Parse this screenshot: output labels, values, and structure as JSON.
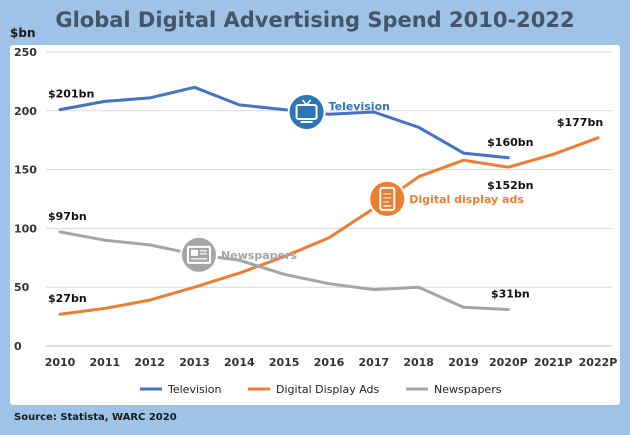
{
  "chart_data": {
    "type": "line",
    "title": "Global Digital Advertising Spend 2010-2022",
    "ylabel": "$bn",
    "xlabel": "",
    "ylim": [
      0,
      250
    ],
    "yticks": [
      0,
      50,
      100,
      150,
      200,
      250
    ],
    "categories": [
      "2010",
      "2011",
      "2012",
      "2013",
      "2014",
      "2015",
      "2016",
      "2017",
      "2018",
      "2019",
      "2020P",
      "2021P",
      "2022P"
    ],
    "grid": true,
    "legend_position": "bottom",
    "series": [
      {
        "name": "Television",
        "color": "#4472c4",
        "values": [
          201,
          208,
          211,
          220,
          205,
          201,
          197,
          199,
          186,
          164,
          160,
          null,
          null
        ]
      },
      {
        "name": "Digital Display Ads",
        "color": "#ed7d31",
        "values": [
          27,
          32,
          39,
          50,
          62,
          76,
          92,
          117,
          144,
          158,
          152,
          163,
          177
        ]
      },
      {
        "name": "Newspapers",
        "color": "#a5a5a5",
        "values": [
          97,
          90,
          86,
          78,
          73,
          61,
          53,
          48,
          50,
          33,
          31,
          null,
          null
        ]
      }
    ],
    "data_labels": [
      {
        "text": "$201bn",
        "series": 0,
        "index": 0,
        "position": "above"
      },
      {
        "text": "$160bn",
        "series": 0,
        "index": 10,
        "position": "above"
      },
      {
        "text": "$27bn",
        "series": 1,
        "index": 0,
        "position": "above"
      },
      {
        "text": "$152bn",
        "series": 1,
        "index": 10,
        "position": "below"
      },
      {
        "text": "$177bn",
        "series": 1,
        "index": 12,
        "position": "above"
      },
      {
        "text": "$97bn",
        "series": 2,
        "index": 0,
        "position": "above"
      },
      {
        "text": "$31bn",
        "series": 2,
        "index": 10,
        "position": "above"
      }
    ],
    "annotations": [
      {
        "text": "Television",
        "series": 0,
        "index": 5.5,
        "icon": "tv-icon",
        "color": "#2e75b6"
      },
      {
        "text": "Digital display ads",
        "series": 1,
        "index": 7.3,
        "icon": "smartphone-icon",
        "color": "#ed7d31"
      },
      {
        "text": "Newspapers",
        "series": 2,
        "index": 3.1,
        "icon": "newspaper-icon",
        "color": "#a5a5a5"
      }
    ]
  },
  "source": "Source: Statista, WARC 2020"
}
